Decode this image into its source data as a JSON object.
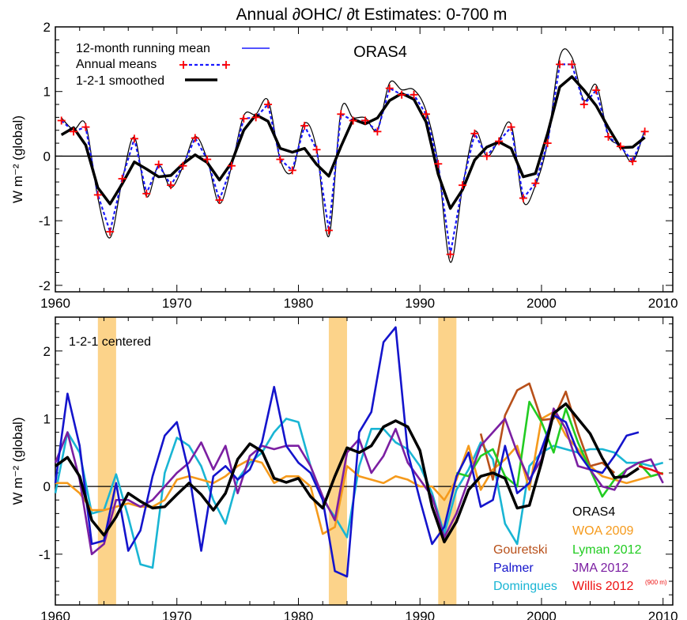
{
  "figure_title": "Annual  ∂OHC/ ∂t Estimates: 0-700 m",
  "colors": {
    "running_mean": "#1a1aff",
    "annual_markers": "#ff0000",
    "annual_dash": "#1a1aff",
    "smoothed": "#000000",
    "volcano_band": "#fcd38a",
    "ORAS4": "#000000",
    "WOA 2009": "#f59a1c",
    "Lyman 2012": "#22cc22",
    "JMA 2012": "#7b1fa2",
    "Willis 2012": "#ee1111",
    "Gouretski": "#b8501a",
    "Palmer": "#1414cc",
    "Domingues": "#19b5d4"
  },
  "chart_data": [
    {
      "type": "line",
      "panel": "top",
      "title": "ORAS4",
      "xlabel": "",
      "ylabel": "W m⁻² (global)",
      "xlim": [
        1960,
        2010.8
      ],
      "ylim": [
        -2.1,
        2.0
      ],
      "xticks": [
        1960,
        1970,
        1980,
        1990,
        2000,
        2010
      ],
      "yticks": [
        -2,
        -1,
        0,
        1,
        2
      ],
      "legend": {
        "position": "top-left",
        "entries": [
          "12-month running mean",
          "Annual means",
          "1-2-1 smoothed"
        ]
      },
      "x": [
        1960.5,
        1961.5,
        1962.5,
        1963.5,
        1964.5,
        1965.5,
        1966.5,
        1967.5,
        1968.5,
        1969.5,
        1970.5,
        1971.5,
        1972.5,
        1973.5,
        1974.5,
        1975.5,
        1976.5,
        1977.5,
        1978.5,
        1979.5,
        1980.5,
        1981.5,
        1982.5,
        1983.5,
        1984.5,
        1985.5,
        1986.5,
        1987.5,
        1988.5,
        1989.5,
        1990.5,
        1991.5,
        1992.5,
        1993.5,
        1994.5,
        1995.5,
        1996.5,
        1997.5,
        1998.5,
        1999.5,
        2000.5,
        2001.5,
        2002.5,
        2003.5,
        2004.5,
        2005.5,
        2006.5,
        2007.5,
        2008.5
      ],
      "series": [
        {
          "name": "Annual means",
          "values": [
            0.55,
            0.38,
            0.45,
            -0.6,
            -1.17,
            -0.35,
            0.27,
            -0.58,
            -0.13,
            -0.45,
            -0.15,
            0.28,
            -0.05,
            -0.68,
            -0.15,
            0.58,
            0.6,
            0.8,
            -0.05,
            -0.22,
            0.47,
            0.1,
            -1.15,
            0.65,
            0.55,
            0.55,
            0.38,
            1.05,
            0.95,
            0.95,
            0.65,
            -0.12,
            -1.52,
            -0.45,
            0.35,
            0.0,
            0.23,
            0.45,
            -0.65,
            -0.42,
            0.2,
            1.42,
            1.42,
            0.8,
            1.02,
            0.3,
            0.15,
            -0.08,
            0.38
          ]
        },
        {
          "name": "1-2-1 smoothed",
          "values": [
            0.33,
            0.44,
            0.17,
            -0.49,
            -0.74,
            -0.43,
            -0.09,
            -0.2,
            -0.32,
            -0.3,
            -0.12,
            0.02,
            -0.1,
            -0.37,
            -0.1,
            0.4,
            0.64,
            0.54,
            0.12,
            0.06,
            0.12,
            -0.13,
            -0.31,
            0.15,
            0.57,
            0.5,
            0.59,
            0.86,
            0.97,
            0.88,
            0.53,
            -0.28,
            -0.81,
            -0.52,
            -0.06,
            0.14,
            0.22,
            0.12,
            -0.32,
            -0.27,
            0.35,
            1.07,
            1.23,
            1.02,
            0.78,
            0.44,
            0.13,
            0.14,
            0.29
          ]
        }
      ]
    },
    {
      "type": "line",
      "panel": "bottom",
      "title": "1-2-1 centered",
      "xlabel": "",
      "ylabel": "W m⁻² (global)",
      "xlim": [
        1960,
        2010.8
      ],
      "ylim": [
        -1.75,
        2.5
      ],
      "xticks": [
        1960,
        1970,
        1980,
        1990,
        2000,
        2010
      ],
      "yticks": [
        -1,
        0,
        1,
        2
      ],
      "shaded_bands": [
        [
          1963.5,
          1965.0
        ],
        [
          1982.5,
          1984.0
        ],
        [
          1991.5,
          1993.0
        ]
      ],
      "legend": {
        "position": "bottom-right",
        "entries": [
          "ORAS4",
          "WOA 2009",
          "Gouretski",
          "Lyman 2012",
          "Palmer",
          "JMA 2012",
          "Domingues",
          "Willis 2012"
        ],
        "willis_note": "(900 m)"
      },
      "series": [
        {
          "name": "ORAS4",
          "x": [
            1960,
            1961,
            1962,
            1963,
            1964,
            1965,
            1966,
            1967,
            1968,
            1969,
            1970,
            1971,
            1972,
            1973,
            1974,
            1975,
            1976,
            1977,
            1978,
            1979,
            1980,
            1981,
            1982,
            1983,
            1984,
            1985,
            1986,
            1987,
            1988,
            1989,
            1990,
            1991,
            1992,
            1993,
            1994,
            1995,
            1996,
            1997,
            1998,
            1999,
            2000,
            2001,
            2002,
            2003,
            2004,
            2005,
            2006,
            2007,
            2008
          ],
          "values": [
            0.3,
            0.43,
            0.15,
            -0.5,
            -0.72,
            -0.45,
            -0.1,
            -0.22,
            -0.32,
            -0.3,
            -0.12,
            0.05,
            -0.12,
            -0.35,
            -0.1,
            0.4,
            0.63,
            0.52,
            0.12,
            0.06,
            0.12,
            -0.15,
            -0.32,
            0.15,
            0.57,
            0.5,
            0.6,
            0.88,
            0.97,
            0.88,
            0.53,
            -0.3,
            -0.82,
            -0.52,
            -0.05,
            0.15,
            0.2,
            0.12,
            -0.32,
            -0.28,
            0.35,
            1.08,
            1.22,
            1.0,
            0.78,
            0.42,
            0.13,
            0.15,
            0.27
          ]
        },
        {
          "name": "WOA 2009",
          "x": [
            1960,
            1961,
            1962,
            1963,
            1964,
            1965,
            1966,
            1967,
            1968,
            1969,
            1970,
            1971,
            1972,
            1973,
            1974,
            1975,
            1976,
            1977,
            1978,
            1979,
            1980,
            1981,
            1982,
            1983,
            1984,
            1985,
            1986,
            1987,
            1988,
            1989,
            1990,
            1991,
            1992,
            1993,
            1994,
            1995,
            1996,
            1997,
            1998,
            1999,
            2000,
            2001,
            2002,
            2003,
            2004,
            2005,
            2006,
            2007,
            2008,
            2009,
            2010
          ],
          "values": [
            0.05,
            0.05,
            -0.1,
            -0.35,
            -0.35,
            -0.3,
            -0.25,
            -0.3,
            -0.3,
            -0.2,
            0.1,
            0.15,
            0.1,
            0.05,
            0.15,
            0.3,
            0.4,
            0.35,
            0.05,
            0.15,
            0.15,
            0.0,
            -0.7,
            -0.6,
            0.3,
            0.15,
            0.1,
            0.05,
            0.15,
            0.1,
            0.0,
            0.0,
            -0.2,
            0.1,
            0.6,
            -0.05,
            0.25,
            0.4,
            0.6,
            -0.05,
            1.0,
            1.1,
            0.75,
            0.55,
            0.3,
            0.15,
            0.1,
            0.05,
            0.1,
            0.15,
            0.2
          ]
        },
        {
          "name": "Gouretski",
          "x": [
            1995,
            1996,
            1997,
            1998,
            1999,
            2000,
            2001,
            2002,
            2003,
            2004,
            2005,
            2006
          ],
          "values": [
            0.78,
            0.1,
            1.05,
            1.42,
            1.52,
            0.98,
            1.0,
            1.4,
            0.8,
            0.3,
            0.35,
            0.2
          ]
        },
        {
          "name": "Lyman 2012",
          "x": [
            1993,
            1994,
            1995,
            1996,
            1997,
            1998,
            1999,
            2000,
            2001,
            2002,
            2003,
            2004,
            2005,
            2006,
            2007,
            2008,
            2009,
            2010
          ],
          "values": [
            0.2,
            0.15,
            0.45,
            0.55,
            0.15,
            0.0,
            1.25,
            0.95,
            0.5,
            1.15,
            0.65,
            0.25,
            -0.15,
            0.1,
            0.25,
            0.35,
            0.15,
            0.2
          ]
        },
        {
          "name": "Palmer",
          "x": [
            1960,
            1961,
            1962,
            1963,
            1964,
            1965,
            1966,
            1967,
            1968,
            1969,
            1970,
            1971,
            1972,
            1973,
            1974,
            1975,
            1976,
            1977,
            1978,
            1979,
            1980,
            1981,
            1982,
            1983,
            1984,
            1985,
            1986,
            1987,
            1988,
            1989,
            1990,
            1991,
            1992,
            1993,
            1994,
            1995,
            1996,
            1997,
            1998,
            1999,
            2000,
            2001,
            2002,
            2003,
            2004,
            2005,
            2006,
            2007,
            2008
          ],
          "values": [
            0.05,
            1.37,
            0.6,
            -0.85,
            -0.8,
            0.05,
            -0.95,
            -0.65,
            0.15,
            0.75,
            0.95,
            0.2,
            -0.95,
            0.15,
            0.3,
            0.1,
            0.25,
            0.65,
            1.47,
            0.6,
            0.35,
            0.2,
            -0.2,
            -1.25,
            -1.33,
            0.8,
            1.1,
            2.13,
            2.35,
            0.5,
            -0.2,
            -0.85,
            -0.6,
            0.15,
            0.5,
            -0.3,
            -0.2,
            0.6,
            -0.1,
            0.05,
            0.55,
            1.05,
            0.95,
            0.5,
            0.25,
            0.2,
            0.45,
            0.75,
            0.8
          ]
        },
        {
          "name": "JMA 2012",
          "x": [
            1960,
            1961,
            1962,
            1963,
            1964,
            1965,
            1966,
            1967,
            1968,
            1969,
            1970,
            1971,
            1972,
            1973,
            1974,
            1975,
            1976,
            1977,
            1978,
            1979,
            1980,
            1981,
            1982,
            1983,
            1984,
            1985,
            1986,
            1987,
            1988,
            1989,
            1990,
            1991,
            1992,
            1993,
            1994,
            1995,
            1996,
            1997,
            1998,
            1999,
            2000,
            2001,
            2002,
            2003,
            2004,
            2005,
            2006,
            2007,
            2008,
            2009,
            2010
          ],
          "values": [
            0.35,
            0.8,
            0.1,
            -1.0,
            -0.85,
            -0.2,
            -0.2,
            -0.3,
            -0.2,
            0.0,
            0.2,
            0.35,
            0.65,
            0.25,
            0.6,
            -0.1,
            0.45,
            0.6,
            0.55,
            0.6,
            0.6,
            0.3,
            -0.15,
            -0.5,
            0.5,
            0.7,
            0.2,
            0.45,
            0.85,
            0.35,
            0.1,
            -0.15,
            -0.75,
            -0.4,
            0.1,
            0.6,
            0.8,
            1.0,
            0.5,
            0.1,
            0.4,
            1.15,
            0.85,
            0.3,
            0.25,
            0.0,
            -0.05,
            0.25,
            0.35,
            0.4,
            0.05
          ]
        },
        {
          "name": "Domingues",
          "x": [
            1960,
            1961,
            1962,
            1963,
            1964,
            1965,
            1966,
            1967,
            1968,
            1969,
            1970,
            1971,
            1972,
            1973,
            1974,
            1975,
            1976,
            1977,
            1978,
            1979,
            1980,
            1981,
            1982,
            1983,
            1984,
            1985,
            1986,
            1987,
            1988,
            1989,
            1990,
            1991,
            1992,
            1993,
            1994,
            1995,
            1996,
            1997,
            1998,
            1999,
            2000,
            2001,
            2002,
            2003,
            2004,
            2005,
            2006,
            2007,
            2008,
            2009,
            2010
          ],
          "values": [
            -0.1,
            0.8,
            0.5,
            -0.4,
            -0.35,
            0.18,
            -0.45,
            -1.15,
            -1.2,
            0.2,
            0.72,
            0.6,
            0.3,
            -0.2,
            -0.55,
            0.1,
            0.35,
            0.5,
            0.8,
            1.0,
            0.95,
            0.3,
            -0.2,
            -0.45,
            -0.75,
            0.3,
            0.85,
            0.85,
            0.65,
            0.55,
            0.3,
            -0.1,
            -0.7,
            -0.05,
            0.25,
            0.65,
            0.4,
            -0.55,
            -0.85,
            0.3,
            0.5,
            0.6,
            0.55,
            0.5,
            0.55,
            0.55,
            0.5,
            0.35,
            0.35,
            0.3,
            0.35
          ]
        },
        {
          "name": "Willis 2012",
          "x": [
            2008,
            2009,
            2010
          ],
          "values": [
            0.3,
            0.25,
            0.18
          ]
        }
      ]
    }
  ]
}
